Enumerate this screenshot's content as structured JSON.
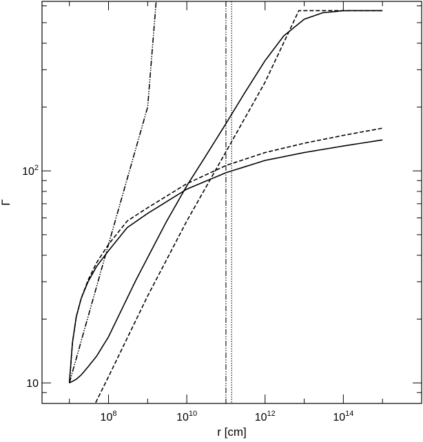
{
  "chart_data": {
    "type": "line",
    "title": "",
    "xlabel": "r [cm]",
    "ylabel": "Γ",
    "x_scale": "log",
    "y_scale": "log",
    "xlim": [
      2000000.0,
      1e+16
    ],
    "ylim": [
      8,
      630
    ],
    "grid": false,
    "legend": "none",
    "x_ticks": [
      {
        "value": 100000000.0,
        "base": "10",
        "exp": "8"
      },
      {
        "value": 10000000000.0,
        "base": "10",
        "exp": "10"
      },
      {
        "value": 1000000000000.0,
        "base": "10",
        "exp": "12"
      },
      {
        "value": 100000000000000.0,
        "base": "10",
        "exp": "14"
      }
    ],
    "y_ticks": [
      {
        "value": 10,
        "base": "10",
        "exp": ""
      },
      {
        "value": 100,
        "base": "10",
        "exp": "2"
      }
    ],
    "series": [
      {
        "style": "solid",
        "x": [
          10000000.0,
          15000000.0,
          20000000.0,
          30000000.0,
          50000000.0,
          100000000.0,
          200000000.0,
          500000000.0,
          1000000000.0,
          3000000000.0,
          10000000000.0,
          30000000000.0,
          100000000000.0,
          300000000000.0,
          1000000000000.0,
          3000000000000.0,
          10000000000000.0,
          30000000000000.0,
          100000000000000.0,
          200000000000000.0,
          1000000000000000.0
        ],
        "y": [
          10,
          10.4,
          10.9,
          11.9,
          13.4,
          16.5,
          21.5,
          30.5,
          39,
          57.5,
          85,
          117,
          167,
          233,
          331,
          433,
          519,
          557,
          569,
          570,
          570
        ]
      },
      {
        "style": "dashed",
        "x": [
          40000000.0,
          100000000.0,
          1000000000.0,
          10000000000.0,
          100000000000.0,
          1000000000000.0,
          7300000000000.0,
          10000000000000.0,
          100000000000000.0,
          1000000000000000.0
        ],
        "y": [
          7.6,
          10.7,
          25.7,
          58,
          123,
          262,
          570,
          570,
          570,
          570
        ]
      },
      {
        "style": "solid",
        "x": [
          10000000.0,
          12000000.0,
          15000000.0,
          20000000.0,
          30000000.0,
          50000000.0,
          100000000.0,
          300000000.0,
          1000000000.0,
          10000000000.0,
          100000000000.0,
          1000000000000.0,
          10000000000000.0,
          100000000000000.0,
          1000000000000000.0
        ],
        "y": [
          10,
          15.5,
          20.5,
          25,
          30,
          35.5,
          42,
          54,
          63,
          82,
          98,
          112,
          122,
          131,
          140
        ]
      },
      {
        "style": "dashed",
        "x": [
          10000000.0,
          12000000.0,
          15000000.0,
          20000000.0,
          30000000.0,
          50000000.0,
          100000000.0,
          300000000.0,
          1000000000.0,
          10000000000.0,
          100000000000.0,
          1000000000000.0,
          10000000000000.0,
          100000000000000.0,
          1000000000000000.0
        ],
        "y": [
          10,
          15.5,
          20.5,
          25,
          30.5,
          37,
          45,
          58,
          67,
          87,
          106,
          122,
          135,
          147,
          159
        ]
      },
      {
        "style": "dashdotdot",
        "x": [
          10000000.0,
          100000000.0,
          1000000000.0,
          1650000000.0
        ],
        "y": [
          10,
          45,
          200,
          630
        ]
      }
    ],
    "vlines": [
      {
        "x": 100000000000.0,
        "style": "dashdotdot"
      },
      {
        "x": 140000000000.0,
        "style": "dotted"
      }
    ]
  }
}
